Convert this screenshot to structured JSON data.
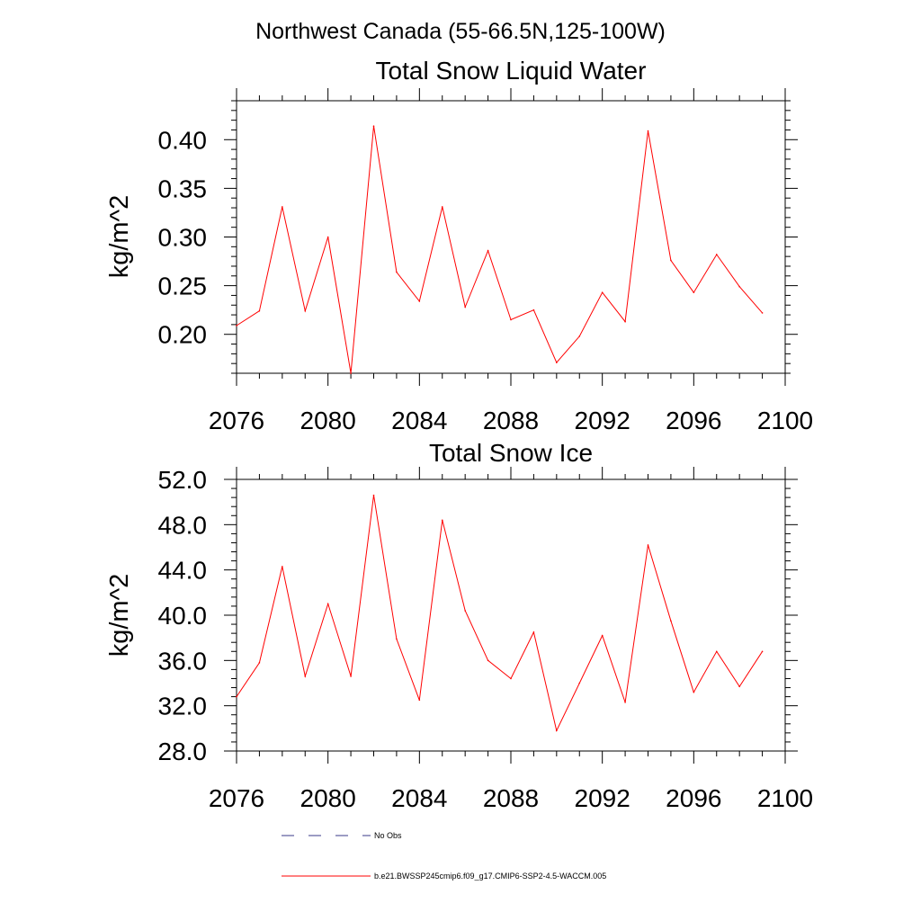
{
  "page": {
    "title": "Northwest Canada (55-66.5N,125-100W)"
  },
  "chart_data": [
    {
      "type": "line",
      "title": "Total Snow Liquid Water",
      "xlabel": "",
      "ylabel": "kg/m^2",
      "xlim": [
        2076,
        2100
      ],
      "ylim": [
        0.16,
        0.44
      ],
      "xticks": [
        2076,
        2080,
        2084,
        2088,
        2092,
        2096,
        2100
      ],
      "xtick_labels": [
        "2076",
        "2080",
        "2084",
        "2088",
        "2092",
        "2096",
        "2100"
      ],
      "yticks": [
        0.2,
        0.25,
        0.3,
        0.35,
        0.4
      ],
      "ytick_labels": [
        "0.20",
        "0.25",
        "0.30",
        "0.35",
        "0.40"
      ],
      "grid": false,
      "series": [
        {
          "name": "b.e21.BWSSP245cmip6.f09_g17.CMIP6-SSP2-4.5-WACCM.005",
          "color": "#ff0000",
          "x": [
            2076,
            2077,
            2078,
            2079,
            2080,
            2081,
            2082,
            2083,
            2084,
            2085,
            2086,
            2087,
            2088,
            2089,
            2090,
            2091,
            2092,
            2093,
            2094,
            2095,
            2096,
            2097,
            2098,
            2099
          ],
          "values": [
            0.209,
            0.224,
            0.331,
            0.224,
            0.3,
            0.16,
            0.414,
            0.264,
            0.234,
            0.331,
            0.228,
            0.286,
            0.215,
            0.225,
            0.171,
            0.198,
            0.243,
            0.213,
            0.409,
            0.276,
            0.243,
            0.282,
            0.249,
            0.222
          ]
        }
      ]
    },
    {
      "type": "line",
      "title": "Total Snow Ice",
      "xlabel": "",
      "ylabel": "kg/m^2",
      "xlim": [
        2076,
        2100
      ],
      "ylim": [
        28.0,
        52.0
      ],
      "xticks": [
        2076,
        2080,
        2084,
        2088,
        2092,
        2096,
        2100
      ],
      "xtick_labels": [
        "2076",
        "2080",
        "2084",
        "2088",
        "2092",
        "2096",
        "2100"
      ],
      "yticks": [
        28.0,
        32.0,
        36.0,
        40.0,
        44.0,
        48.0,
        52.0
      ],
      "ytick_labels": [
        "28.0",
        "32.0",
        "36.0",
        "40.0",
        "44.0",
        "48.0",
        "52.0"
      ],
      "grid": false,
      "series": [
        {
          "name": "b.e21.BWSSP245cmip6.f09_g17.CMIP6-SSP2-4.5-WACCM.005",
          "color": "#ff0000",
          "x": [
            2076,
            2077,
            2078,
            2079,
            2080,
            2081,
            2082,
            2083,
            2084,
            2085,
            2086,
            2087,
            2088,
            2089,
            2090,
            2091,
            2092,
            2093,
            2094,
            2095,
            2096,
            2097,
            2098,
            2099
          ],
          "values": [
            32.8,
            35.8,
            44.3,
            34.6,
            41.0,
            34.6,
            50.6,
            37.9,
            32.5,
            48.4,
            40.4,
            36.0,
            34.4,
            38.5,
            29.8,
            34.0,
            38.2,
            32.3,
            46.2,
            39.5,
            33.2,
            36.8,
            33.7,
            36.8
          ]
        }
      ]
    }
  ],
  "legend": {
    "placement": "bottom",
    "items": [
      {
        "label": "No Obs",
        "color": "#3a3a8a",
        "style": "dashed"
      },
      {
        "label": "b.e21.BWSSP245cmip6.f09_g17.CMIP6-SSP2-4.5-WACCM.005",
        "color": "#ff0000",
        "style": "solid"
      }
    ]
  }
}
